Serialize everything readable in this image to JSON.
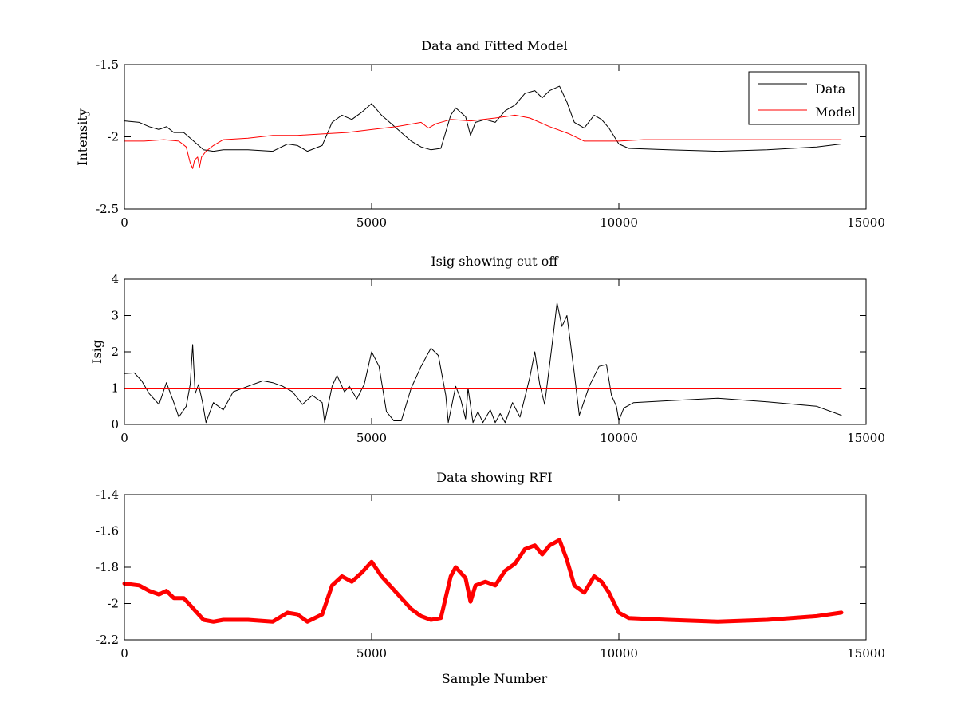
{
  "colors": {
    "data": "#000000",
    "model": "#ff0000",
    "cutoff": "#ff0000",
    "rfi": "#ff0000",
    "axes": "#000000",
    "background": "#ffffff"
  },
  "chart_data": [
    {
      "type": "line",
      "title": "Data and Fitted Model",
      "xlabel": "",
      "ylabel": "Intensity",
      "xlim": [
        0,
        15000
      ],
      "ylim": [
        -2.5,
        -1.5
      ],
      "xticks": [
        0,
        5000,
        10000,
        15000
      ],
      "xtick_labels": [
        "0",
        "5000",
        "10000",
        "15000"
      ],
      "yticks": [
        -2.5,
        -2,
        -1.5
      ],
      "ytick_labels": [
        "-2.5",
        "-2",
        "-1.5"
      ],
      "grid": false,
      "legend": {
        "placement": "top-right",
        "entries": [
          "Data",
          "Model"
        ]
      },
      "series": [
        {
          "name": "Data",
          "color": "#000000",
          "width": 1,
          "x": [
            0,
            300,
            500,
            700,
            850,
            1000,
            1200,
            1400,
            1600,
            1800,
            2000,
            2500,
            3000,
            3300,
            3500,
            3700,
            4000,
            4200,
            4400,
            4600,
            4800,
            5000,
            5200,
            5400,
            5600,
            5800,
            6000,
            6200,
            6400,
            6600,
            6700,
            6800,
            6900,
            7000,
            7100,
            7300,
            7500,
            7700,
            7900,
            8100,
            8300,
            8450,
            8600,
            8800,
            8950,
            9100,
            9300,
            9500,
            9650,
            9800,
            10000,
            10200,
            11000,
            12000,
            13000,
            14000,
            14500
          ],
          "y": [
            -1.89,
            -1.9,
            -1.93,
            -1.95,
            -1.93,
            -1.97,
            -1.97,
            -2.03,
            -2.09,
            -2.1,
            -2.09,
            -2.09,
            -2.1,
            -2.05,
            -2.06,
            -2.1,
            -2.06,
            -1.9,
            -1.85,
            -1.88,
            -1.83,
            -1.77,
            -1.85,
            -1.91,
            -1.97,
            -2.03,
            -2.07,
            -2.09,
            -2.08,
            -1.85,
            -1.8,
            -1.83,
            -1.86,
            -1.99,
            -1.9,
            -1.88,
            -1.9,
            -1.82,
            -1.78,
            -1.7,
            -1.68,
            -1.73,
            -1.68,
            -1.65,
            -1.76,
            -1.9,
            -1.94,
            -1.85,
            -1.88,
            -1.94,
            -2.05,
            -2.08,
            -2.09,
            -2.1,
            -2.09,
            -2.07,
            -2.05
          ]
        },
        {
          "name": "Model",
          "color": "#ff0000",
          "width": 1,
          "x": [
            0,
            400,
            800,
            1100,
            1250,
            1330,
            1380,
            1420,
            1480,
            1520,
            1560,
            1650,
            1800,
            2000,
            2500,
            3000,
            3500,
            4000,
            4500,
            5000,
            5500,
            6000,
            6150,
            6300,
            6600,
            7000,
            7500,
            7900,
            8200,
            8600,
            9000,
            9300,
            9500,
            9800,
            10000,
            10500,
            11000,
            12000,
            13000,
            14000,
            14500
          ],
          "y": [
            -2.03,
            -2.03,
            -2.02,
            -2.03,
            -2.07,
            -2.18,
            -2.22,
            -2.16,
            -2.14,
            -2.21,
            -2.14,
            -2.1,
            -2.06,
            -2.02,
            -2.01,
            -1.99,
            -1.99,
            -1.98,
            -1.97,
            -1.95,
            -1.93,
            -1.9,
            -1.94,
            -1.91,
            -1.88,
            -1.89,
            -1.87,
            -1.85,
            -1.87,
            -1.93,
            -1.98,
            -2.03,
            -2.03,
            -2.03,
            -2.03,
            -2.02,
            -2.02,
            -2.02,
            -2.02,
            -2.02,
            -2.02
          ]
        }
      ]
    },
    {
      "type": "line",
      "title": "Isig showing cut off",
      "xlabel": "",
      "ylabel": "Isig",
      "xlim": [
        0,
        15000
      ],
      "ylim": [
        0,
        4
      ],
      "xticks": [
        0,
        5000,
        10000,
        15000
      ],
      "xtick_labels": [
        "0",
        "5000",
        "10000",
        "15000"
      ],
      "yticks": [
        0,
        1,
        2,
        3,
        4
      ],
      "ytick_labels": [
        "0",
        "1",
        "2",
        "3",
        "4"
      ],
      "grid": false,
      "series": [
        {
          "color": "#000000",
          "width": 1,
          "x": [
            0,
            200,
            350,
            500,
            700,
            850,
            1000,
            1100,
            1250,
            1330,
            1380,
            1430,
            1500,
            1580,
            1650,
            1800,
            2000,
            2200,
            2500,
            2800,
            3000,
            3200,
            3400,
            3600,
            3800,
            4000,
            4050,
            4200,
            4300,
            4450,
            4550,
            4700,
            4850,
            5000,
            5150,
            5300,
            5450,
            5600,
            5800,
            6000,
            6200,
            6350,
            6500,
            6550,
            6700,
            6800,
            6900,
            6950,
            7050,
            7150,
            7250,
            7400,
            7500,
            7600,
            7700,
            7850,
            8000,
            8200,
            8300,
            8400,
            8500,
            8650,
            8750,
            8850,
            8950,
            9100,
            9200,
            9400,
            9600,
            9750,
            9850,
            9950,
            10000,
            10100,
            10300,
            11000,
            12000,
            13000,
            14000,
            14500
          ],
          "y": [
            1.4,
            1.42,
            1.2,
            0.85,
            0.55,
            1.15,
            0.6,
            0.2,
            0.5,
            1.1,
            2.2,
            0.85,
            1.1,
            0.6,
            0.05,
            0.6,
            0.4,
            0.9,
            1.05,
            1.2,
            1.15,
            1.05,
            0.9,
            0.55,
            0.8,
            0.6,
            0.05,
            1.05,
            1.35,
            0.9,
            1.05,
            0.7,
            1.1,
            2.0,
            1.6,
            0.35,
            0.1,
            0.1,
            1.0,
            1.6,
            2.1,
            1.9,
            0.8,
            0.05,
            1.05,
            0.7,
            0.15,
            1.0,
            0.05,
            0.35,
            0.05,
            0.4,
            0.05,
            0.3,
            0.05,
            0.6,
            0.2,
            1.3,
            2.0,
            1.1,
            0.55,
            2.2,
            3.35,
            2.7,
            3.0,
            1.4,
            0.25,
            1.05,
            1.6,
            1.65,
            0.8,
            0.5,
            0.1,
            0.45,
            0.6,
            0.65,
            0.72,
            0.62,
            0.5,
            0.25
          ]
        },
        {
          "color": "#ff0000",
          "width": 1,
          "x": [
            0,
            14500
          ],
          "y": [
            1,
            1
          ]
        }
      ]
    },
    {
      "type": "line",
      "title": "Data showing RFI",
      "xlabel": "Sample Number",
      "ylabel": "",
      "xlim": [
        0,
        15000
      ],
      "ylim": [
        -2.2,
        -1.4
      ],
      "xticks": [
        0,
        5000,
        10000,
        15000
      ],
      "xtick_labels": [
        "0",
        "5000",
        "10000",
        "15000"
      ],
      "yticks": [
        -2.2,
        -2,
        -1.8,
        -1.6,
        -1.4
      ],
      "ytick_labels": [
        "-2.2",
        "-2",
        "-1.8",
        "-1.6",
        "-1.4"
      ],
      "grid": false,
      "series": [
        {
          "color": "#ff0000",
          "width": 5,
          "x": [
            0,
            300,
            500,
            700,
            850,
            1000,
            1200,
            1400,
            1600,
            1800,
            2000,
            2500,
            3000,
            3300,
            3500,
            3700,
            4000,
            4200,
            4400,
            4600,
            4800,
            5000,
            5200,
            5400,
            5600,
            5800,
            6000,
            6200,
            6400,
            6600,
            6700,
            6800,
            6900,
            7000,
            7100,
            7300,
            7500,
            7700,
            7900,
            8100,
            8300,
            8450,
            8600,
            8800,
            8950,
            9100,
            9300,
            9500,
            9650,
            9800,
            10000,
            10200,
            11000,
            12000,
            13000,
            14000,
            14500
          ],
          "y": [
            -1.89,
            -1.9,
            -1.93,
            -1.95,
            -1.93,
            -1.97,
            -1.97,
            -2.03,
            -2.09,
            -2.1,
            -2.09,
            -2.09,
            -2.1,
            -2.05,
            -2.06,
            -2.1,
            -2.06,
            -1.9,
            -1.85,
            -1.88,
            -1.83,
            -1.77,
            -1.85,
            -1.91,
            -1.97,
            -2.03,
            -2.07,
            -2.09,
            -2.08,
            -1.85,
            -1.8,
            -1.83,
            -1.86,
            -1.99,
            -1.9,
            -1.88,
            -1.9,
            -1.82,
            -1.78,
            -1.7,
            -1.68,
            -1.73,
            -1.68,
            -1.65,
            -1.76,
            -1.9,
            -1.94,
            -1.85,
            -1.88,
            -1.94,
            -2.05,
            -2.08,
            -2.09,
            -2.1,
            -2.09,
            -2.07,
            -2.05
          ]
        }
      ]
    }
  ]
}
